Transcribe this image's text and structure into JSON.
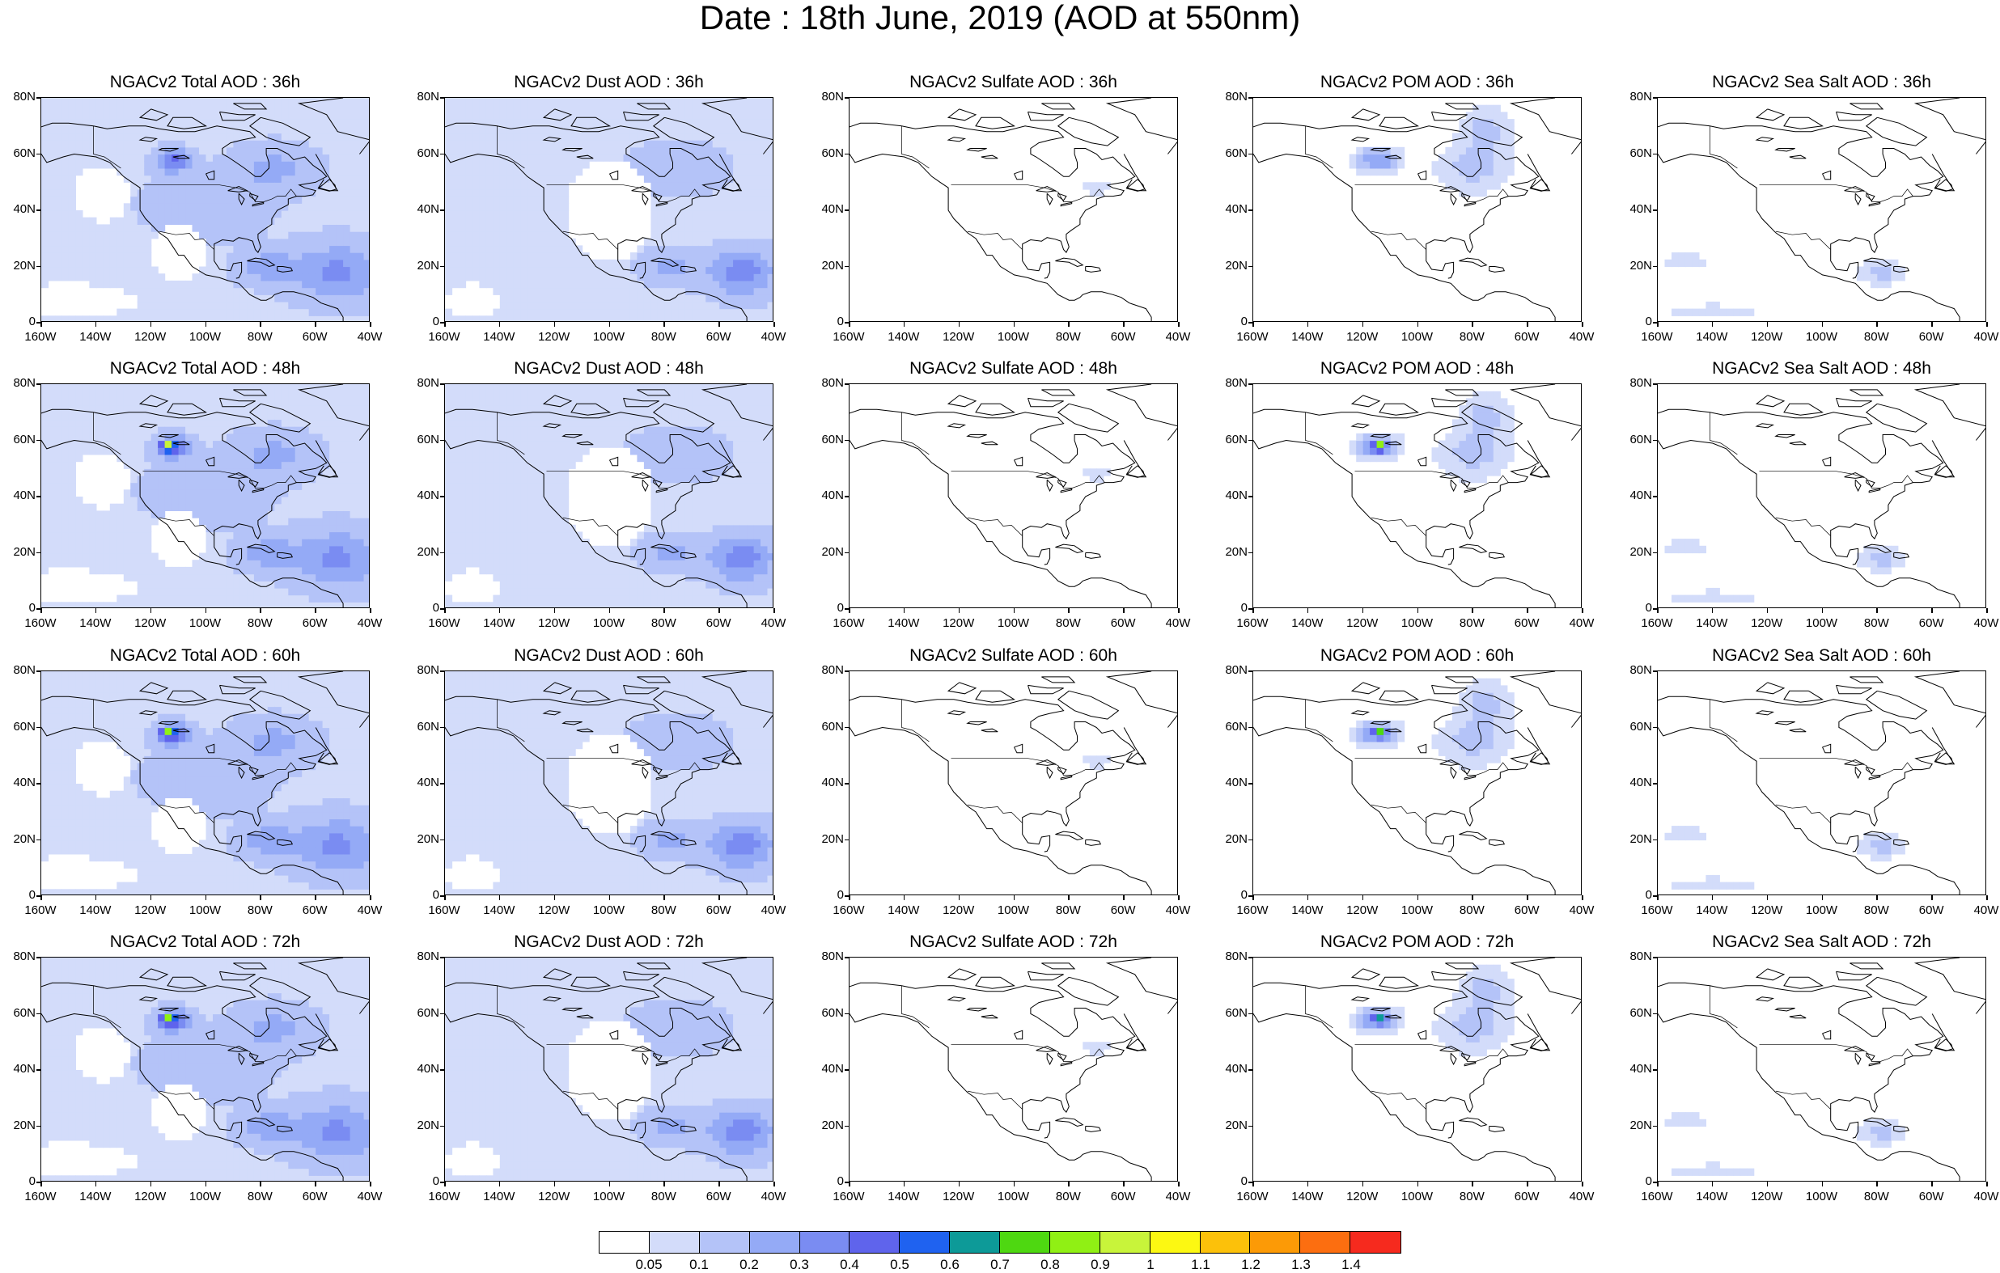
{
  "title": "Date : 18th June, 2019 (AOD at 550nm)",
  "y_ticks": [
    "80N",
    "60N",
    "40N",
    "20N",
    "0"
  ],
  "x_ticks": [
    "160W",
    "140W",
    "120W",
    "100W",
    "80W",
    "60W",
    "40W"
  ],
  "panel_titles": [
    [
      "NGACv2 Total AOD : 36h",
      "NGACv2 Dust AOD : 36h",
      "NGACv2 Sulfate AOD : 36h",
      "NGACv2 POM AOD : 36h",
      "NGACv2 Sea Salt AOD : 36h"
    ],
    [
      "NGACv2 Total AOD : 48h",
      "NGACv2 Dust AOD : 48h",
      "NGACv2 Sulfate AOD : 48h",
      "NGACv2 POM AOD : 48h",
      "NGACv2 Sea Salt AOD : 48h"
    ],
    [
      "NGACv2 Total AOD : 60h",
      "NGACv2 Dust AOD : 60h",
      "NGACv2 Sulfate AOD : 60h",
      "NGACv2 POM AOD : 60h",
      "NGACv2 Sea Salt AOD : 60h"
    ],
    [
      "NGACv2 Total AOD : 72h",
      "NGACv2 Dust AOD : 72h",
      "NGACv2 Sulfate AOD : 72h",
      "NGACv2 POM AOD : 72h",
      "NGACv2 Sea Salt  AOD : 72h"
    ]
  ],
  "colorbar": {
    "labels": [
      "0.05",
      "0.1",
      "0.2",
      "0.3",
      "0.4",
      "0.5",
      "0.6",
      "0.7",
      "0.8",
      "0.9",
      "1",
      "1.1",
      "1.2",
      "1.3",
      "1.4"
    ],
    "colors": [
      "#ffffff",
      "#d3dcfa",
      "#b4c3f8",
      "#94aaf6",
      "#7a8cf2",
      "#5f64ec",
      "#1f62f0",
      "#0d9a98",
      "#4ed811",
      "#90f014",
      "#c8f43a",
      "#fcf812",
      "#fcc10a",
      "#fc9a06",
      "#fc6e10",
      "#f62a1e"
    ]
  },
  "fields": {
    "Total": {
      "background": 0.08,
      "blobs": [
        [
          -112,
          58,
          6,
          4,
          0.35
        ],
        [
          -52,
          18,
          16,
          10,
          0.25
        ],
        [
          -78,
          20,
          10,
          6,
          0.18
        ],
        [
          -75,
          55,
          15,
          8,
          0.15
        ],
        [
          -100,
          42,
          20,
          10,
          0.12
        ]
      ],
      "clear": [
        [
          -150,
          8,
          25,
          6
        ],
        [
          -110,
          25,
          10,
          10
        ],
        [
          -138,
          46,
          10,
          10
        ]
      ]
    },
    "Dust": {
      "background": 0.08,
      "blobs": [
        [
          -52,
          18,
          12,
          8,
          0.28
        ],
        [
          -78,
          20,
          10,
          6,
          0.14
        ],
        [
          -75,
          55,
          15,
          8,
          0.12
        ]
      ],
      "clear": [
        [
          -100,
          40,
          16,
          18
        ],
        [
          -150,
          8,
          10,
          6
        ]
      ]
    },
    "Sulfate": {
      "background": 0.0,
      "blobs": [
        [
          -70,
          48,
          5,
          3,
          0.1
        ]
      ],
      "clear": []
    },
    "POM": {
      "background": 0.0,
      "blobs": [
        [
          -115,
          58,
          8,
          4,
          0.3
        ],
        [
          -80,
          55,
          15,
          10,
          0.12
        ],
        [
          -75,
          70,
          10,
          8,
          0.11
        ]
      ],
      "clear": []
    },
    "Sea Salt": {
      "background": 0.0,
      "blobs": [
        [
          -78,
          18,
          10,
          5,
          0.12
        ],
        [
          -140,
          4,
          20,
          3,
          0.09
        ],
        [
          -150,
          22,
          10,
          4,
          0.08
        ]
      ],
      "clear": []
    }
  },
  "rows": [
    {
      "lead": "36h",
      "fields": [
        "Total",
        "Dust",
        "Sulfate",
        "POM",
        "Sea Salt"
      ],
      "hotspot": 0.0
    },
    {
      "lead": "48h",
      "fields": [
        "Total",
        "Dust",
        "Sulfate",
        "POM",
        "Sea Salt"
      ],
      "hotspot": 0.8
    },
    {
      "lead": "60h",
      "fields": [
        "Total",
        "Dust",
        "Sulfate",
        "POM",
        "Sea Salt"
      ],
      "hotspot": 0.6
    },
    {
      "lead": "72h",
      "fields": [
        "Total",
        "Dust",
        "Sulfate",
        "POM",
        "Sea Salt"
      ],
      "hotspot": 0.55
    }
  ],
  "map_extent": {
    "lon": [
      -160,
      -40
    ],
    "lat": [
      0,
      80
    ]
  }
}
